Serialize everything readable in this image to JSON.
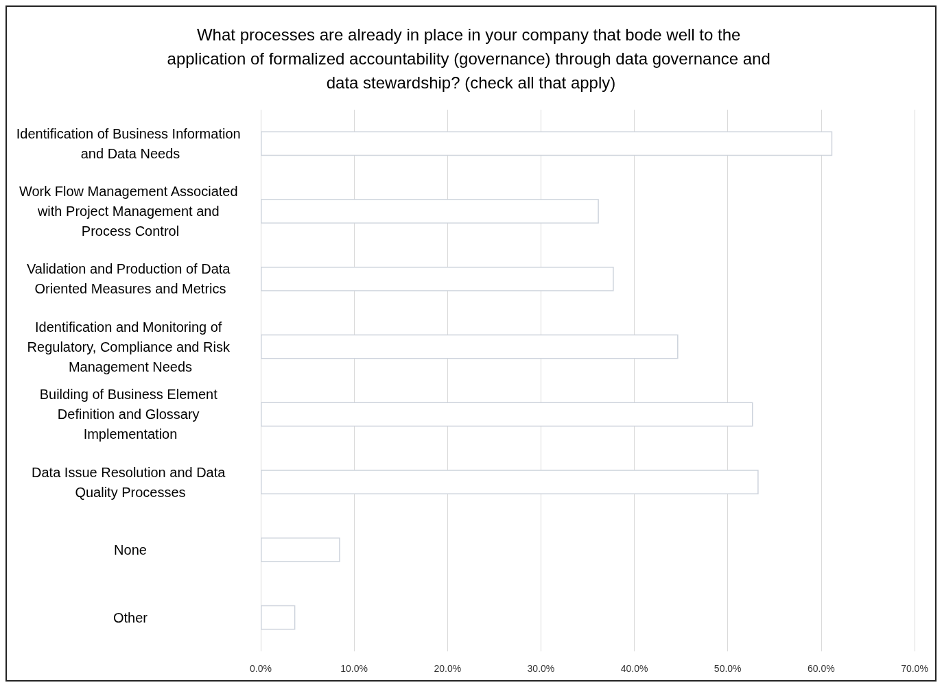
{
  "chart_data": {
    "type": "bar",
    "orientation": "horizontal",
    "title": "What processes are already in place in your company that bode well to the application of formalized accountability (governance) through data governance and data stewardship? (check all that apply)",
    "categories": [
      "Identification of Business Information and Data Needs",
      "Work Flow Management Associated with Project Management and Process Control",
      "Validation and Production of Data Oriented Measures and Metrics",
      "Identification and Monitoring of Regulatory, Compliance and Risk Management Needs",
      "Building of Business Element Definition and Glossary Implementation",
      "Data Issue Resolution and Data Quality Processes",
      "None",
      "Other"
    ],
    "values": [
      61.2,
      36.2,
      37.8,
      44.7,
      52.7,
      53.3,
      8.5,
      3.7
    ],
    "color": "#ffffff",
    "xlim": [
      0,
      70
    ],
    "xticks": [
      {
        "value": 0,
        "label": "0.0%"
      },
      {
        "value": 10,
        "label": "10.0%"
      },
      {
        "value": 20,
        "label": "20.0%"
      },
      {
        "value": 30,
        "label": "30.0%"
      },
      {
        "value": 40,
        "label": "40.0%"
      },
      {
        "value": 50,
        "label": "50.0%"
      },
      {
        "value": 60,
        "label": "60.0%"
      },
      {
        "value": 70,
        "label": "70.0%"
      }
    ],
    "grid": "x"
  }
}
